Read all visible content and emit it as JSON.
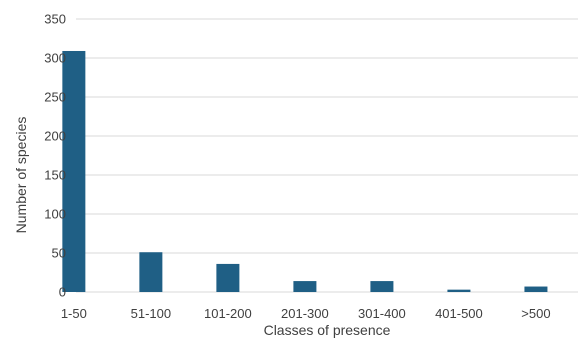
{
  "chart_data": {
    "type": "bar",
    "title": "",
    "xlabel": "Classes of presence",
    "ylabel": "Number of species",
    "categories": [
      "1-50",
      "51-100",
      "101-200",
      "201-300",
      "301-400",
      "401-500",
      ">500"
    ],
    "values": [
      309,
      51,
      36,
      14,
      14,
      3,
      7
    ],
    "ylim": [
      0,
      350
    ],
    "yticks": [
      0,
      50,
      100,
      150,
      200,
      250,
      300,
      350
    ],
    "grid": true,
    "legend": "none",
    "colors": {
      "bar": "#1f5f85",
      "grid": "#d9d9d9",
      "text": "#404040"
    }
  }
}
